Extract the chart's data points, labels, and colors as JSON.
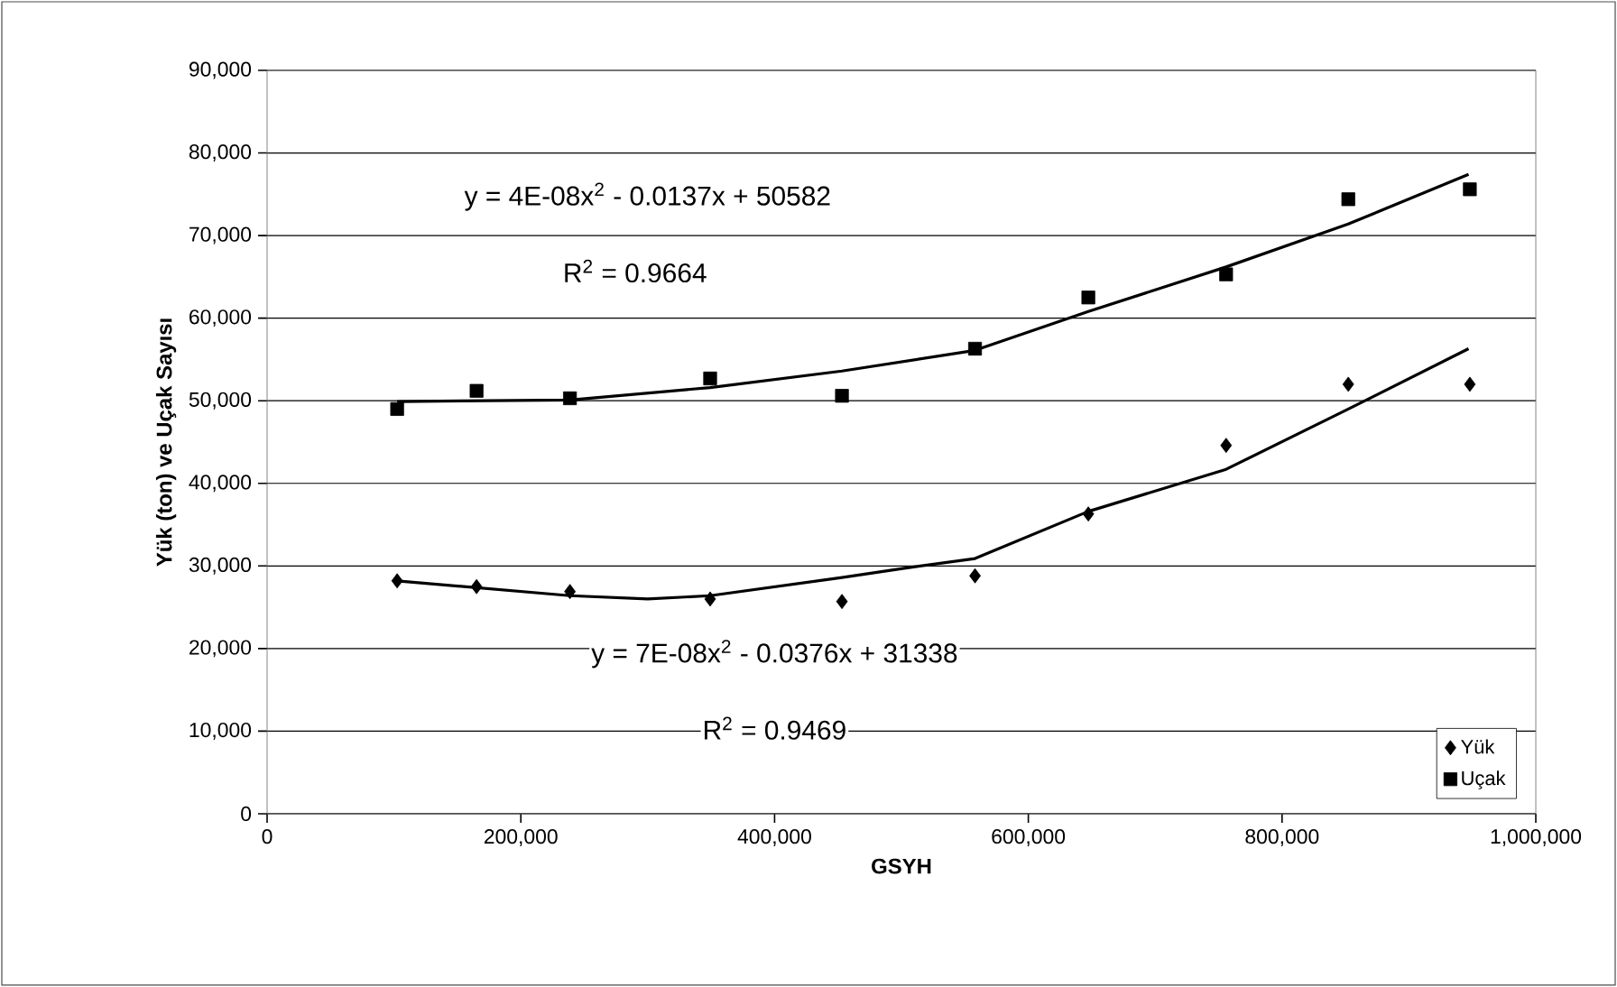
{
  "chart_data": {
    "type": "scatter",
    "xlabel": "GSYH",
    "ylabel": "Yük (ton) ve Uçak Sayısı",
    "x": [
      102500,
      165100,
      238700,
      349200,
      453100,
      558000,
      647300,
      755900,
      852200,
      948000
    ],
    "series": [
      {
        "name": "Yük",
        "color": "#000000",
        "marker": "diamond",
        "values": [
          28200,
          27500,
          26900,
          26000,
          25700,
          28800,
          36300,
          44600,
          52000,
          52000
        ]
      },
      {
        "name": "Uçak",
        "color": "#000000",
        "marker": "square",
        "values": [
          49000,
          51200,
          50300,
          52700,
          50600,
          56300,
          62500,
          65300,
          74400,
          75600
        ]
      },
      {
        "type": "line",
        "color": "#000000",
        "marker": "none",
        "x": [
          102500,
          238700,
          300000,
          349200,
          453100,
          501000,
          558000,
          647300,
          755900,
          852200,
          947000
        ],
        "values": [
          28200,
          26400,
          26000,
          26400,
          28600,
          29700,
          30900,
          36600,
          41700,
          49000,
          56300
        ]
      },
      {
        "type": "line",
        "color": "#000000",
        "marker": "none",
        "x": [
          102500,
          238700,
          349200,
          453100,
          558000,
          647300,
          755900,
          852200,
          947000
        ],
        "values": [
          49900,
          50100,
          51600,
          53600,
          56100,
          60800,
          66200,
          71400,
          77400
        ]
      }
    ],
    "xlim": [
      0,
      1000000
    ],
    "ylim": [
      0,
      90000
    ],
    "xticks": [
      0,
      {
        "value": 200000,
        "label": "200,000"
      },
      {
        "value": 400000,
        "label": "400,000"
      },
      {
        "value": 600000,
        "label": "600,000"
      },
      {
        "value": 800000,
        "label": "800,000"
      },
      {
        "value": 1000000,
        "label": "1,000,000"
      }
    ],
    "yticks": [
      0,
      {
        "value": 10000,
        "label": "10,000"
      },
      {
        "value": 20000,
        "label": "20,000"
      },
      {
        "value": 30000,
        "label": "30,000"
      },
      {
        "value": 40000,
        "label": "40,000"
      },
      {
        "value": 50000,
        "label": "50,000"
      },
      {
        "value": 60000,
        "label": "60,000"
      },
      {
        "value": 70000,
        "label": "70,000"
      },
      {
        "value": 80000,
        "label": "80,000"
      },
      {
        "value": 90000,
        "label": "90,000"
      }
    ],
    "grid": "y",
    "legend": "bottom right",
    "annotations": [
      "y = 4E-08x$^{2}$ - 0.0137x + 50582",
      "R$^{2}$ = 0.9664",
      "y = 7E-08x$^{2}$ - 0.0376x + 31338",
      "R$^{2}$ = 0.9469"
    ]
  }
}
